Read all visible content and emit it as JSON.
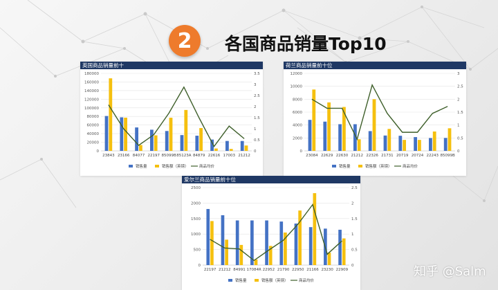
{
  "slide": {
    "number": "2",
    "title": "各国商品销量Top10"
  },
  "watermark": "知乎 @Salm",
  "colors": {
    "bar_qty": "#4472c4",
    "bar_amount": "#f5c00f",
    "line_avg": "#3e5f2a",
    "header": "#1f3864",
    "badge": "#ee7b2c"
  },
  "chart_data": [
    {
      "type": "bar",
      "title": "英国商品销量前十",
      "categories": [
        "23843",
        "23166",
        "84077",
        "22197",
        "85099B",
        "85123A",
        "84879",
        "22616",
        "17003",
        "21212"
      ],
      "series": [
        {
          "name": "销售量",
          "axis": "left",
          "values": [
            80995,
            77916,
            54415,
            49183,
            46181,
            36706,
            35263,
            26299,
            23026,
            22963
          ]
        },
        {
          "name": "销售额（英镑）",
          "axis": "left",
          "values": [
            168470,
            77183,
            13587,
            36116,
            77000,
            95000,
            53000,
            5500,
            4500,
            12500
          ]
        },
        {
          "name": "商品均价",
          "type": "line",
          "axis": "right",
          "values": [
            2.08,
            1.0,
            0.25,
            0.73,
            1.7,
            2.88,
            1.5,
            0.2,
            1.12,
            0.55
          ]
        }
      ],
      "ylim_left": [
        0,
        180000
      ],
      "yticks_left": [
        "0",
        "20000",
        "40000",
        "60000",
        "80000",
        "100000",
        "120000",
        "140000",
        "160000",
        "180000"
      ],
      "ylim_right": [
        0,
        3.5
      ],
      "yticks_right": [
        "0",
        "0.5",
        "1",
        "1.5",
        "2",
        "2.5",
        "3",
        "3.5"
      ],
      "legend": "bottom"
    },
    {
      "type": "bar",
      "title": "荷兰商品销量前十位",
      "categories": [
        "23084",
        "22629",
        "22630",
        "21212",
        "22326",
        "21731",
        "20719",
        "20724",
        "22243",
        "85099B"
      ],
      "series": [
        {
          "name": "销售量",
          "axis": "left",
          "values": [
            4801,
            4528,
            4132,
            4128,
            3060,
            2376,
            2342,
            2136,
            1984,
            2000
          ]
        },
        {
          "name": "销售额（英镑）",
          "axis": "left",
          "values": [
            9500,
            7500,
            6800,
            1800,
            8000,
            3400,
            1700,
            1700,
            3000,
            3500
          ]
        },
        {
          "name": "商品均价",
          "type": "line",
          "axis": "right",
          "values": [
            2.0,
            1.65,
            1.65,
            0.45,
            2.55,
            1.45,
            0.72,
            0.72,
            1.45,
            1.72
          ]
        }
      ],
      "ylim_left": [
        0,
        12000
      ],
      "yticks_left": [
        "0",
        "2000",
        "4000",
        "6000",
        "8000",
        "10000",
        "12000"
      ],
      "ylim_right": [
        0,
        3
      ],
      "yticks_right": [
        "0",
        "0.5",
        "1",
        "1.5",
        "2",
        "2.5",
        "3"
      ],
      "legend": "bottom"
    },
    {
      "type": "bar",
      "title": "爱尔兰商品销量前十位",
      "categories": [
        "22197",
        "21212",
        "84991",
        "17084R",
        "22952",
        "21790",
        "22950",
        "21166",
        "23230",
        "22909"
      ],
      "series": [
        {
          "name": "销售量",
          "axis": "left",
          "values": [
            1809,
            1608,
            1440,
            1440,
            1440,
            1404,
            1340,
            1224,
            1176,
            1140
          ]
        },
        {
          "name": "销售额（英镑）",
          "axis": "left",
          "values": [
            1420,
            820,
            650,
            180,
            620,
            1050,
            1760,
            2320,
            400,
            860
          ]
        },
        {
          "name": "商品均价",
          "type": "line",
          "axis": "right",
          "values": [
            0.83,
            0.55,
            0.52,
            0.15,
            0.48,
            0.8,
            1.32,
            1.95,
            0.35,
            0.78
          ]
        }
      ],
      "ylim_left": [
        0,
        2500
      ],
      "yticks_left": [
        "0",
        "500",
        "1000",
        "1500",
        "2000",
        "2500"
      ],
      "ylim_right": [
        0,
        2.5
      ],
      "yticks_right": [
        "0",
        "0.5",
        "1",
        "1.5",
        "2",
        "2.5"
      ],
      "legend": "bottom"
    }
  ]
}
